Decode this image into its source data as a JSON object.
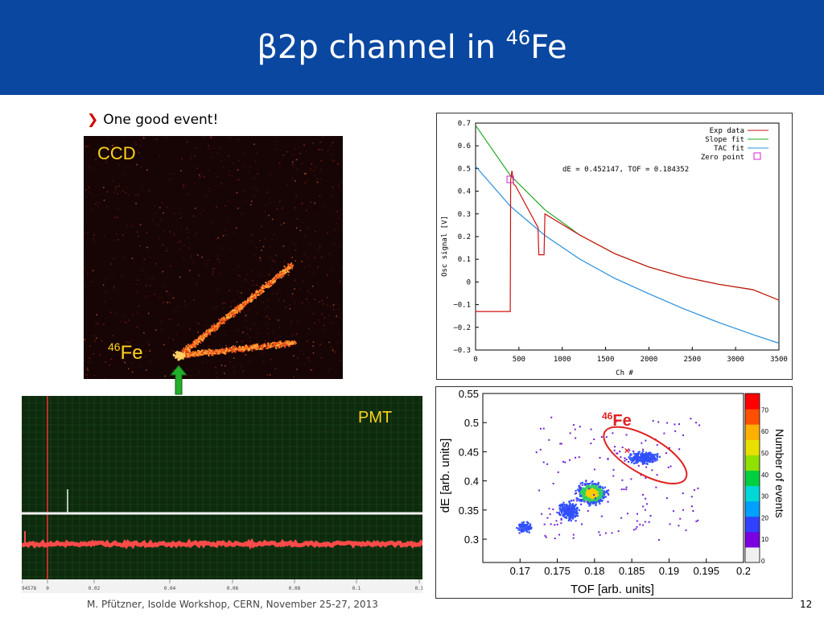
{
  "slide": {
    "title_pre": "β2p channel in ",
    "title_sup": "46",
    "title_post": "Fe",
    "bullet": "One good event!",
    "footer": "M. Pfützner, Isolde Workshop, CERN, November 25-27, 2013",
    "page_number": "12"
  },
  "ccd": {
    "label": "CCD",
    "fe_sup": "46",
    "fe_text": "Fe"
  },
  "pmt": {
    "label": "PMT",
    "x_ticks": [
      "94578",
      "0",
      "0.02",
      "0.04",
      "0.06",
      "0.08",
      "0.1",
      "0.1"
    ]
  },
  "colors": {
    "header": "#0a47a0",
    "accent": "#ffd21a",
    "bullet_arrow": "#d00000",
    "ellipse": "#e02020"
  },
  "chart_data": [
    {
      "type": "line",
      "xlabel": "Ch #",
      "ylabel": "Osc signal [V]",
      "xlim": [
        0,
        3500
      ],
      "ylim": [
        -0.3,
        0.7
      ],
      "x_ticks": [
        "0",
        "500",
        "1000",
        "1500",
        "2000",
        "2500",
        "3000",
        "3500"
      ],
      "y_ticks": [
        "−0.3",
        "−0.2",
        "−0.1",
        "0",
        "0.1",
        "0.2",
        "0.3",
        "0.4",
        "0.5",
        "0.6",
        "0.7"
      ],
      "annotation": "dE = 0.452147, TOF = 0.184352",
      "legend": [
        "Exp data",
        "Slope fit",
        "TAC fit",
        "Zero point"
      ],
      "legend_position": "top-right",
      "series": [
        {
          "name": "Slope fit",
          "color": "#22aa22",
          "x": [
            0,
            400,
            800,
            1200,
            1600,
            2000,
            2400,
            2800,
            3200,
            3500
          ],
          "y": [
            0.69,
            0.47,
            0.318,
            0.207,
            0.126,
            0.066,
            0.022,
            -0.01,
            -0.034,
            -0.08
          ]
        },
        {
          "name": "TAC fit",
          "color": "#2a8fdc",
          "x": [
            0,
            400,
            800,
            1200,
            1600,
            2000,
            2400,
            2800,
            3200,
            3500
          ],
          "y": [
            0.51,
            0.334,
            0.205,
            0.101,
            0.017,
            -0.052,
            -0.118,
            -0.178,
            -0.232,
            -0.27
          ]
        },
        {
          "name": "Exp data",
          "color": "#d01010",
          "x": [
            0,
            400,
            405,
            420,
            440,
            460,
            720,
            730,
            790,
            800,
            1200,
            1600,
            2000,
            2400,
            2800,
            3200,
            3500
          ],
          "y": [
            -0.13,
            -0.13,
            0.45,
            0.49,
            0.43,
            0.425,
            0.24,
            0.12,
            0.12,
            0.3,
            0.207,
            0.126,
            0.066,
            0.022,
            -0.01,
            -0.034,
            -0.08
          ]
        }
      ],
      "zero_point": {
        "x": 400,
        "y": 0.452
      }
    },
    {
      "type": "heatmap",
      "xlabel": "TOF [arb. units]",
      "ylabel": "dE [arb. units]",
      "xlim": [
        0.165,
        0.2
      ],
      "ylim": [
        0.26,
        0.55
      ],
      "x_ticks": [
        "0.17",
        "0.175",
        "0.18",
        "0.185",
        "0.19",
        "0.195",
        "0.2"
      ],
      "y_ticks": [
        "0.3",
        "0.35",
        "0.4",
        "0.45",
        "0.5",
        "0.55"
      ],
      "colorbar_label": "Number of events",
      "colorbar_ticks": [
        "0",
        "10",
        "20",
        "30",
        "40",
        "50",
        "60",
        "70"
      ],
      "annotation": {
        "sup": "46",
        "text": "Fe"
      },
      "marked_event": {
        "x": 0.184352,
        "y": 0.452147
      }
    }
  ]
}
